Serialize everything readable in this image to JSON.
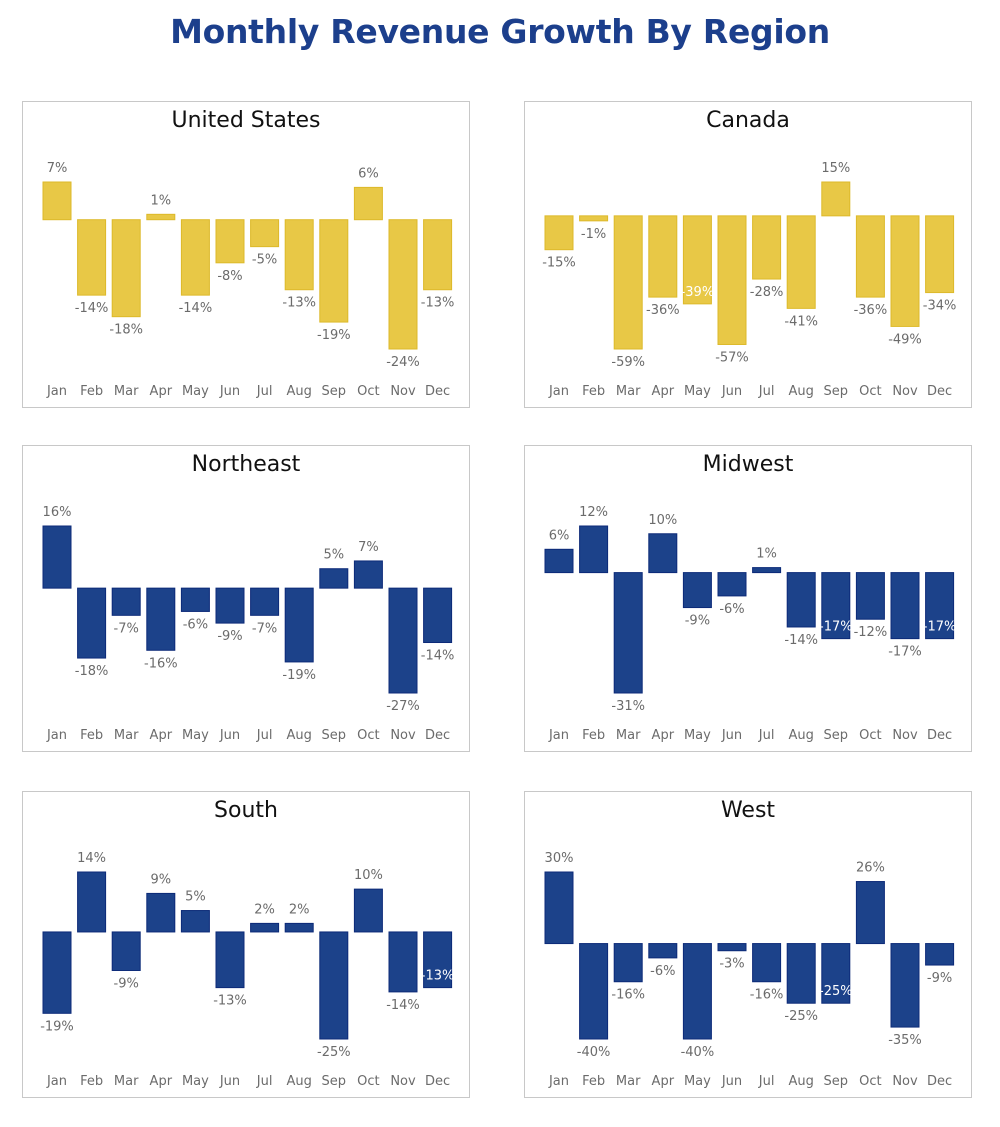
{
  "title": "Monthly Revenue Growth By Region",
  "colors": {
    "title": "#1C3F8C",
    "yellow_fill": "#E8C846",
    "yellow_stroke": "#DDB92A",
    "blue_fill": "#1C428A",
    "blue_stroke": "#0C2A78"
  },
  "chart_data": [
    {
      "type": "bar",
      "title": "United States",
      "color": "yellow",
      "categories": [
        "Jan",
        "Feb",
        "Mar",
        "Apr",
        "May",
        "Jun",
        "Jul",
        "Aug",
        "Sep",
        "Oct",
        "Nov",
        "Dec"
      ],
      "values": [
        7,
        -14,
        -18,
        1,
        -14,
        -8,
        -5,
        -13,
        -19,
        6,
        -24,
        -13
      ],
      "labels": [
        "7%",
        "-14%",
        "-18%",
        "1%",
        "-14%",
        "-8%",
        "-5%",
        "-13%",
        "-19%",
        "6%",
        "-24%",
        "-13%"
      ],
      "label_inside": [
        false,
        false,
        false,
        false,
        false,
        false,
        false,
        false,
        false,
        false,
        false,
        false
      ],
      "xlabel": "",
      "ylabel": "",
      "grid": false
    },
    {
      "type": "bar",
      "title": "Canada",
      "color": "yellow",
      "categories": [
        "Jan",
        "Feb",
        "Mar",
        "Apr",
        "May",
        "Jun",
        "Jul",
        "Aug",
        "Sep",
        "Oct",
        "Nov",
        "Dec"
      ],
      "values": [
        -15,
        -1,
        -59,
        -36,
        -39,
        -57,
        -28,
        -41,
        15,
        -36,
        -49,
        -34
      ],
      "labels": [
        "-15%",
        "-1%",
        "-59%",
        "-36%",
        "-39%",
        "-57%",
        "-28%",
        "-41%",
        "15%",
        "-36%",
        "-49%",
        "-34%"
      ],
      "label_inside": [
        false,
        false,
        false,
        false,
        true,
        false,
        false,
        false,
        false,
        false,
        false,
        false
      ],
      "xlabel": "",
      "ylabel": "",
      "grid": false
    },
    {
      "type": "bar",
      "title": "Northeast",
      "color": "blue",
      "categories": [
        "Jan",
        "Feb",
        "Mar",
        "Apr",
        "May",
        "Jun",
        "Jul",
        "Aug",
        "Sep",
        "Oct",
        "Nov",
        "Dec"
      ],
      "values": [
        16,
        -18,
        -7,
        -16,
        -6,
        -9,
        -7,
        -19,
        5,
        7,
        -27,
        -14
      ],
      "labels": [
        "16%",
        "-18%",
        "-7%",
        "-16%",
        "-6%",
        "-9%",
        "-7%",
        "-19%",
        "5%",
        "7%",
        "-27%",
        "-14%"
      ],
      "label_inside": [
        false,
        false,
        false,
        false,
        false,
        false,
        false,
        false,
        false,
        false,
        false,
        false
      ],
      "xlabel": "",
      "ylabel": "",
      "grid": false
    },
    {
      "type": "bar",
      "title": "Midwest",
      "color": "blue",
      "categories": [
        "Jan",
        "Feb",
        "Mar",
        "Apr",
        "May",
        "Jun",
        "Jul",
        "Aug",
        "Sep",
        "Oct",
        "Nov",
        "Dec"
      ],
      "values": [
        6,
        12,
        -31,
        10,
        -9,
        -6,
        1,
        -14,
        -17,
        -12,
        -17,
        -17
      ],
      "labels": [
        "6%",
        "12%",
        "-31%",
        "10%",
        "-9%",
        "-6%",
        "1%",
        "-14%",
        "-17%",
        "-12%",
        "-17%",
        "-17%"
      ],
      "label_inside": [
        false,
        false,
        false,
        false,
        false,
        false,
        false,
        false,
        true,
        false,
        false,
        true
      ],
      "xlabel": "",
      "ylabel": "",
      "grid": false
    },
    {
      "type": "bar",
      "title": "South",
      "color": "blue",
      "categories": [
        "Jan",
        "Feb",
        "Mar",
        "Apr",
        "May",
        "Jun",
        "Jul",
        "Aug",
        "Sep",
        "Oct",
        "Nov",
        "Dec"
      ],
      "values": [
        -19,
        14,
        -9,
        9,
        5,
        -13,
        2,
        2,
        -25,
        10,
        -14,
        -13
      ],
      "labels": [
        "-19%",
        "14%",
        "-9%",
        "9%",
        "5%",
        "-13%",
        "2%",
        "2%",
        "-25%",
        "10%",
        "-14%",
        "-13%"
      ],
      "label_inside": [
        false,
        false,
        false,
        false,
        false,
        false,
        false,
        false,
        false,
        false,
        false,
        true
      ],
      "xlabel": "",
      "ylabel": "",
      "grid": false
    },
    {
      "type": "bar",
      "title": "West",
      "color": "blue",
      "categories": [
        "Jan",
        "Feb",
        "Mar",
        "Apr",
        "May",
        "Jun",
        "Jul",
        "Aug",
        "Sep",
        "Oct",
        "Nov",
        "Dec"
      ],
      "values": [
        30,
        -40,
        -16,
        -6,
        -40,
        -3,
        -16,
        -25,
        -25,
        26,
        -35,
        -9
      ],
      "labels": [
        "30%",
        "-40%",
        "-16%",
        "-6%",
        "-40%",
        "-3%",
        "-16%",
        "-25%",
        "-25%",
        "26%",
        "-35%",
        "-9%"
      ],
      "label_inside": [
        false,
        false,
        false,
        false,
        false,
        false,
        false,
        false,
        true,
        false,
        false,
        false
      ],
      "xlabel": "",
      "ylabel": "",
      "grid": false
    }
  ]
}
